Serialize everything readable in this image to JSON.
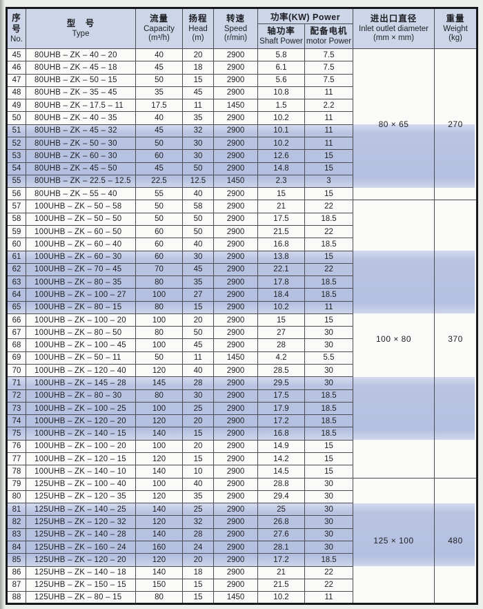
{
  "table": {
    "header": {
      "no": {
        "zh1": "序",
        "zh2": "号",
        "en": "No."
      },
      "type": {
        "zh": "型　号",
        "en": "Type"
      },
      "capacity": {
        "zh": "流量",
        "en": "Capacity",
        "unit": "(m³/h)"
      },
      "head": {
        "zh": "扬程",
        "en": "Head",
        "unit": "(m)"
      },
      "speed": {
        "zh": "转速",
        "en": "Speed",
        "unit": "(r/min)"
      },
      "power_group": "功率(KW) Power",
      "shaft_power": {
        "zh": "轴功率",
        "en": "Shaft Power"
      },
      "motor_power": {
        "zh": "配备电机",
        "en": "motor Power"
      },
      "diameter": {
        "zh": "进出口直径",
        "en": "Inlet outlet diameter",
        "unit": "(mm × mm)"
      },
      "weight": {
        "zh": "重量",
        "en": "Weight",
        "unit": "(kg)"
      }
    },
    "columns_order": [
      "no",
      "type",
      "capacity",
      "head",
      "speed",
      "shaft_power",
      "motor_power"
    ],
    "rows": [
      [
        "45",
        "80UHB – ZK – 40 – 20",
        "40",
        "20",
        "2900",
        "5.8",
        "7.5"
      ],
      [
        "46",
        "80UHB – ZK – 45 – 18",
        "45",
        "18",
        "2900",
        "6.1",
        "7.5"
      ],
      [
        "47",
        "80UHB – ZK – 50 – 15",
        "50",
        "15",
        "2900",
        "5.6",
        "7.5"
      ],
      [
        "48",
        "80UHB – ZK – 35 – 45",
        "35",
        "45",
        "2900",
        "10.8",
        "11"
      ],
      [
        "49",
        "80UHB – ZK – 17.5 – 11",
        "17.5",
        "11",
        "1450",
        "1.5",
        "2.2"
      ],
      [
        "50",
        "80UHB – ZK – 40 – 35",
        "40",
        "35",
        "2900",
        "10.2",
        "11"
      ],
      [
        "51",
        "80UHB – ZK – 45 – 32",
        "45",
        "32",
        "2900",
        "10.1",
        "11"
      ],
      [
        "52",
        "80UHB – ZK – 50 – 30",
        "50",
        "30",
        "2900",
        "10.2",
        "11"
      ],
      [
        "53",
        "80UHB – ZK – 60 – 30",
        "60",
        "30",
        "2900",
        "12.6",
        "15"
      ],
      [
        "54",
        "80UHB – ZK – 45 – 50",
        "45",
        "50",
        "2900",
        "14.8",
        "15"
      ],
      [
        "55",
        "80UHB – ZK – 22.5 – 12.5",
        "22.5",
        "12.5",
        "1450",
        "2.3",
        "3"
      ],
      [
        "56",
        "80UHB – ZK – 55 – 40",
        "55",
        "40",
        "2900",
        "15",
        "15"
      ],
      [
        "57",
        "100UHB – ZK – 50 – 58",
        "50",
        "58",
        "2900",
        "21",
        "22"
      ],
      [
        "58",
        "100UHB – ZK – 50 – 50",
        "50",
        "50",
        "2900",
        "17.5",
        "18.5"
      ],
      [
        "59",
        "100UHB – ZK – 60 – 50",
        "60",
        "50",
        "2900",
        "21.5",
        "22"
      ],
      [
        "60",
        "100UHB – ZK – 60 – 40",
        "60",
        "40",
        "2900",
        "16.8",
        "18.5"
      ],
      [
        "61",
        "100UHB – ZK – 60 – 30",
        "60",
        "30",
        "2900",
        "13.8",
        "15"
      ],
      [
        "62",
        "100UHB – ZK – 70 – 45",
        "70",
        "45",
        "2900",
        "22.1",
        "22"
      ],
      [
        "63",
        "100UHB – ZK – 80 – 35",
        "80",
        "35",
        "2900",
        "17.8",
        "18.5"
      ],
      [
        "64",
        "100UHB – ZK – 100 – 27",
        "100",
        "27",
        "2900",
        "18.4",
        "18.5"
      ],
      [
        "65",
        "100UHB – ZK – 80 – 15",
        "80",
        "15",
        "2900",
        "10.2",
        "11"
      ],
      [
        "66",
        "100UHB – ZK – 100 – 20",
        "100",
        "20",
        "2900",
        "15",
        "15"
      ],
      [
        "67",
        "100UHB – ZK – 80 – 50",
        "80",
        "50",
        "2900",
        "27",
        "30"
      ],
      [
        "68",
        "100UHB – ZK – 100 – 45",
        "100",
        "45",
        "2900",
        "28",
        "30"
      ],
      [
        "69",
        "100UHB – ZK – 50 – 11",
        "50",
        "11",
        "1450",
        "4.2",
        "5.5"
      ],
      [
        "70",
        "100UHB – ZK – 120 – 40",
        "120",
        "40",
        "2900",
        "28.5",
        "30"
      ],
      [
        "71",
        "100UHB – ZK – 145 – 28",
        "145",
        "28",
        "2900",
        "29.5",
        "30"
      ],
      [
        "72",
        "100UHB – ZK – 80 – 30",
        "80",
        "30",
        "2900",
        "17.5",
        "18.5"
      ],
      [
        "73",
        "100UHB – ZK – 100 – 25",
        "100",
        "25",
        "2900",
        "17.9",
        "18.5"
      ],
      [
        "74",
        "100UHB – ZK – 120 – 20",
        "120",
        "20",
        "2900",
        "17.2",
        "18.5"
      ],
      [
        "75",
        "100UHB – ZK – 140 – 15",
        "140",
        "15",
        "2900",
        "16.8",
        "18.5"
      ],
      [
        "76",
        "100UHB – ZK – 100 – 20",
        "100",
        "20",
        "2900",
        "14.9",
        "15"
      ],
      [
        "77",
        "100UHB – ZK – 120 – 15",
        "120",
        "15",
        "2900",
        "14.2",
        "15"
      ],
      [
        "78",
        "100UHB – ZK – 140 – 10",
        "140",
        "10",
        "2900",
        "14.5",
        "15"
      ],
      [
        "79",
        "125UHB – ZK – 100 – 40",
        "100",
        "40",
        "2900",
        "28.8",
        "30"
      ],
      [
        "80",
        "125UHB – ZK – 120 – 35",
        "120",
        "35",
        "2900",
        "29.4",
        "30"
      ],
      [
        "81",
        "125UHB – ZK – 140 – 25",
        "140",
        "25",
        "2900",
        "25",
        "30"
      ],
      [
        "82",
        "125UHB – ZK – 120 – 32",
        "120",
        "32",
        "2900",
        "26.8",
        "30"
      ],
      [
        "83",
        "125UHB – ZK – 140 – 28",
        "140",
        "28",
        "2900",
        "27.6",
        "30"
      ],
      [
        "84",
        "125UHB – ZK – 160 – 24",
        "160",
        "24",
        "2900",
        "28.1",
        "30"
      ],
      [
        "85",
        "125UHB – ZK – 120 – 20",
        "120",
        "20",
        "2900",
        "17.2",
        "18.5"
      ],
      [
        "86",
        "125UHB – ZK – 140 – 18",
        "140",
        "18",
        "2900",
        "21",
        "22"
      ],
      [
        "87",
        "125UHB – ZK – 150 – 15",
        "150",
        "15",
        "2900",
        "21.5",
        "22"
      ],
      [
        "88",
        "125UHB – ZK – 80 – 15",
        "80",
        "15",
        "1450",
        "10.2",
        "11"
      ]
    ],
    "groups": [
      {
        "start": 45,
        "end": 56,
        "diameter": "80 × 65",
        "weight": "270"
      },
      {
        "start": 57,
        "end": 78,
        "diameter": "100 × 80",
        "weight": "370"
      },
      {
        "start": 79,
        "end": 88,
        "diameter": "125 × 100",
        "weight": "480"
      }
    ],
    "shaded_bands": [
      [
        51,
        55
      ],
      [
        61,
        65
      ],
      [
        71,
        75
      ],
      [
        81,
        85
      ]
    ],
    "colors": {
      "header_bg": "#cdd6e9",
      "band": "#b6c1e0",
      "inner_border": "#494a52",
      "outer_border": "#17181b",
      "page_bg": "#edefec"
    }
  }
}
